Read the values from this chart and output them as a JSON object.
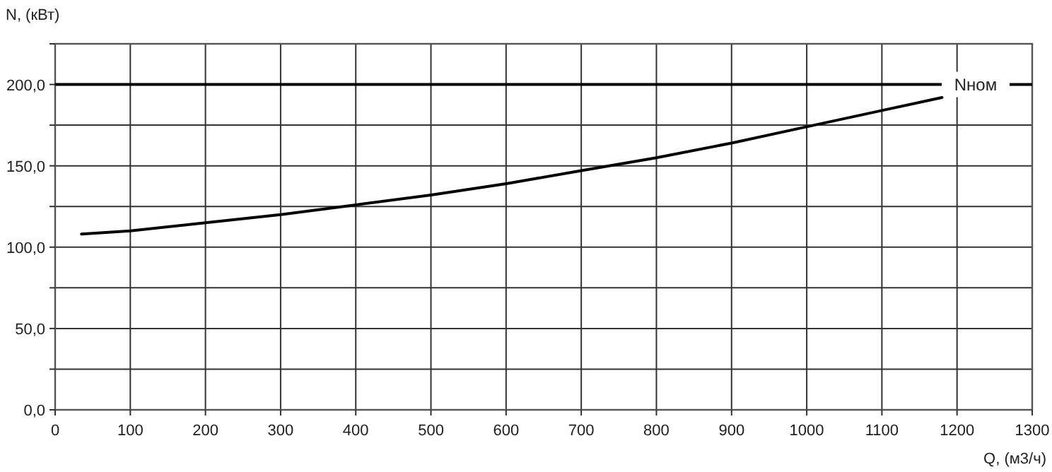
{
  "chart_data": {
    "type": "line",
    "xlabel": "Q, (м3/ч)",
    "ylabel": "N, (кВт)",
    "x": [
      35,
      100,
      200,
      300,
      400,
      500,
      600,
      700,
      800,
      900,
      1000,
      1100,
      1180
    ],
    "series": [
      {
        "color": "#000000",
        "values": [
          108,
          110,
          115,
          120,
          126,
          132,
          139,
          147,
          155,
          164,
          174,
          184,
          192
        ]
      }
    ],
    "xlim": [
      0,
      1300
    ],
    "xticks": [
      0,
      100,
      200,
      300,
      400,
      500,
      600,
      700,
      800,
      900,
      1000,
      1100,
      1200,
      1300
    ],
    "ylim": [
      0,
      225
    ],
    "yticks": [
      {
        "value": 0,
        "label": "0,0"
      },
      {
        "value": 25,
        "label": null
      },
      {
        "value": 50,
        "label": "50,0"
      },
      {
        "value": 75,
        "label": null
      },
      {
        "value": 100,
        "label": "100,0"
      },
      {
        "value": 125,
        "label": null
      },
      {
        "value": 150,
        "label": "150,0"
      },
      {
        "value": 175,
        "label": null
      },
      {
        "value": 200,
        "label": "200,0"
      },
      {
        "value": 225,
        "label": null
      }
    ],
    "grid": true,
    "marker": "none",
    "line_style": "solid",
    "ref_lines": [
      {
        "axis": "y",
        "value": 200,
        "label": "Nном",
        "color": "#000000"
      }
    ]
  }
}
